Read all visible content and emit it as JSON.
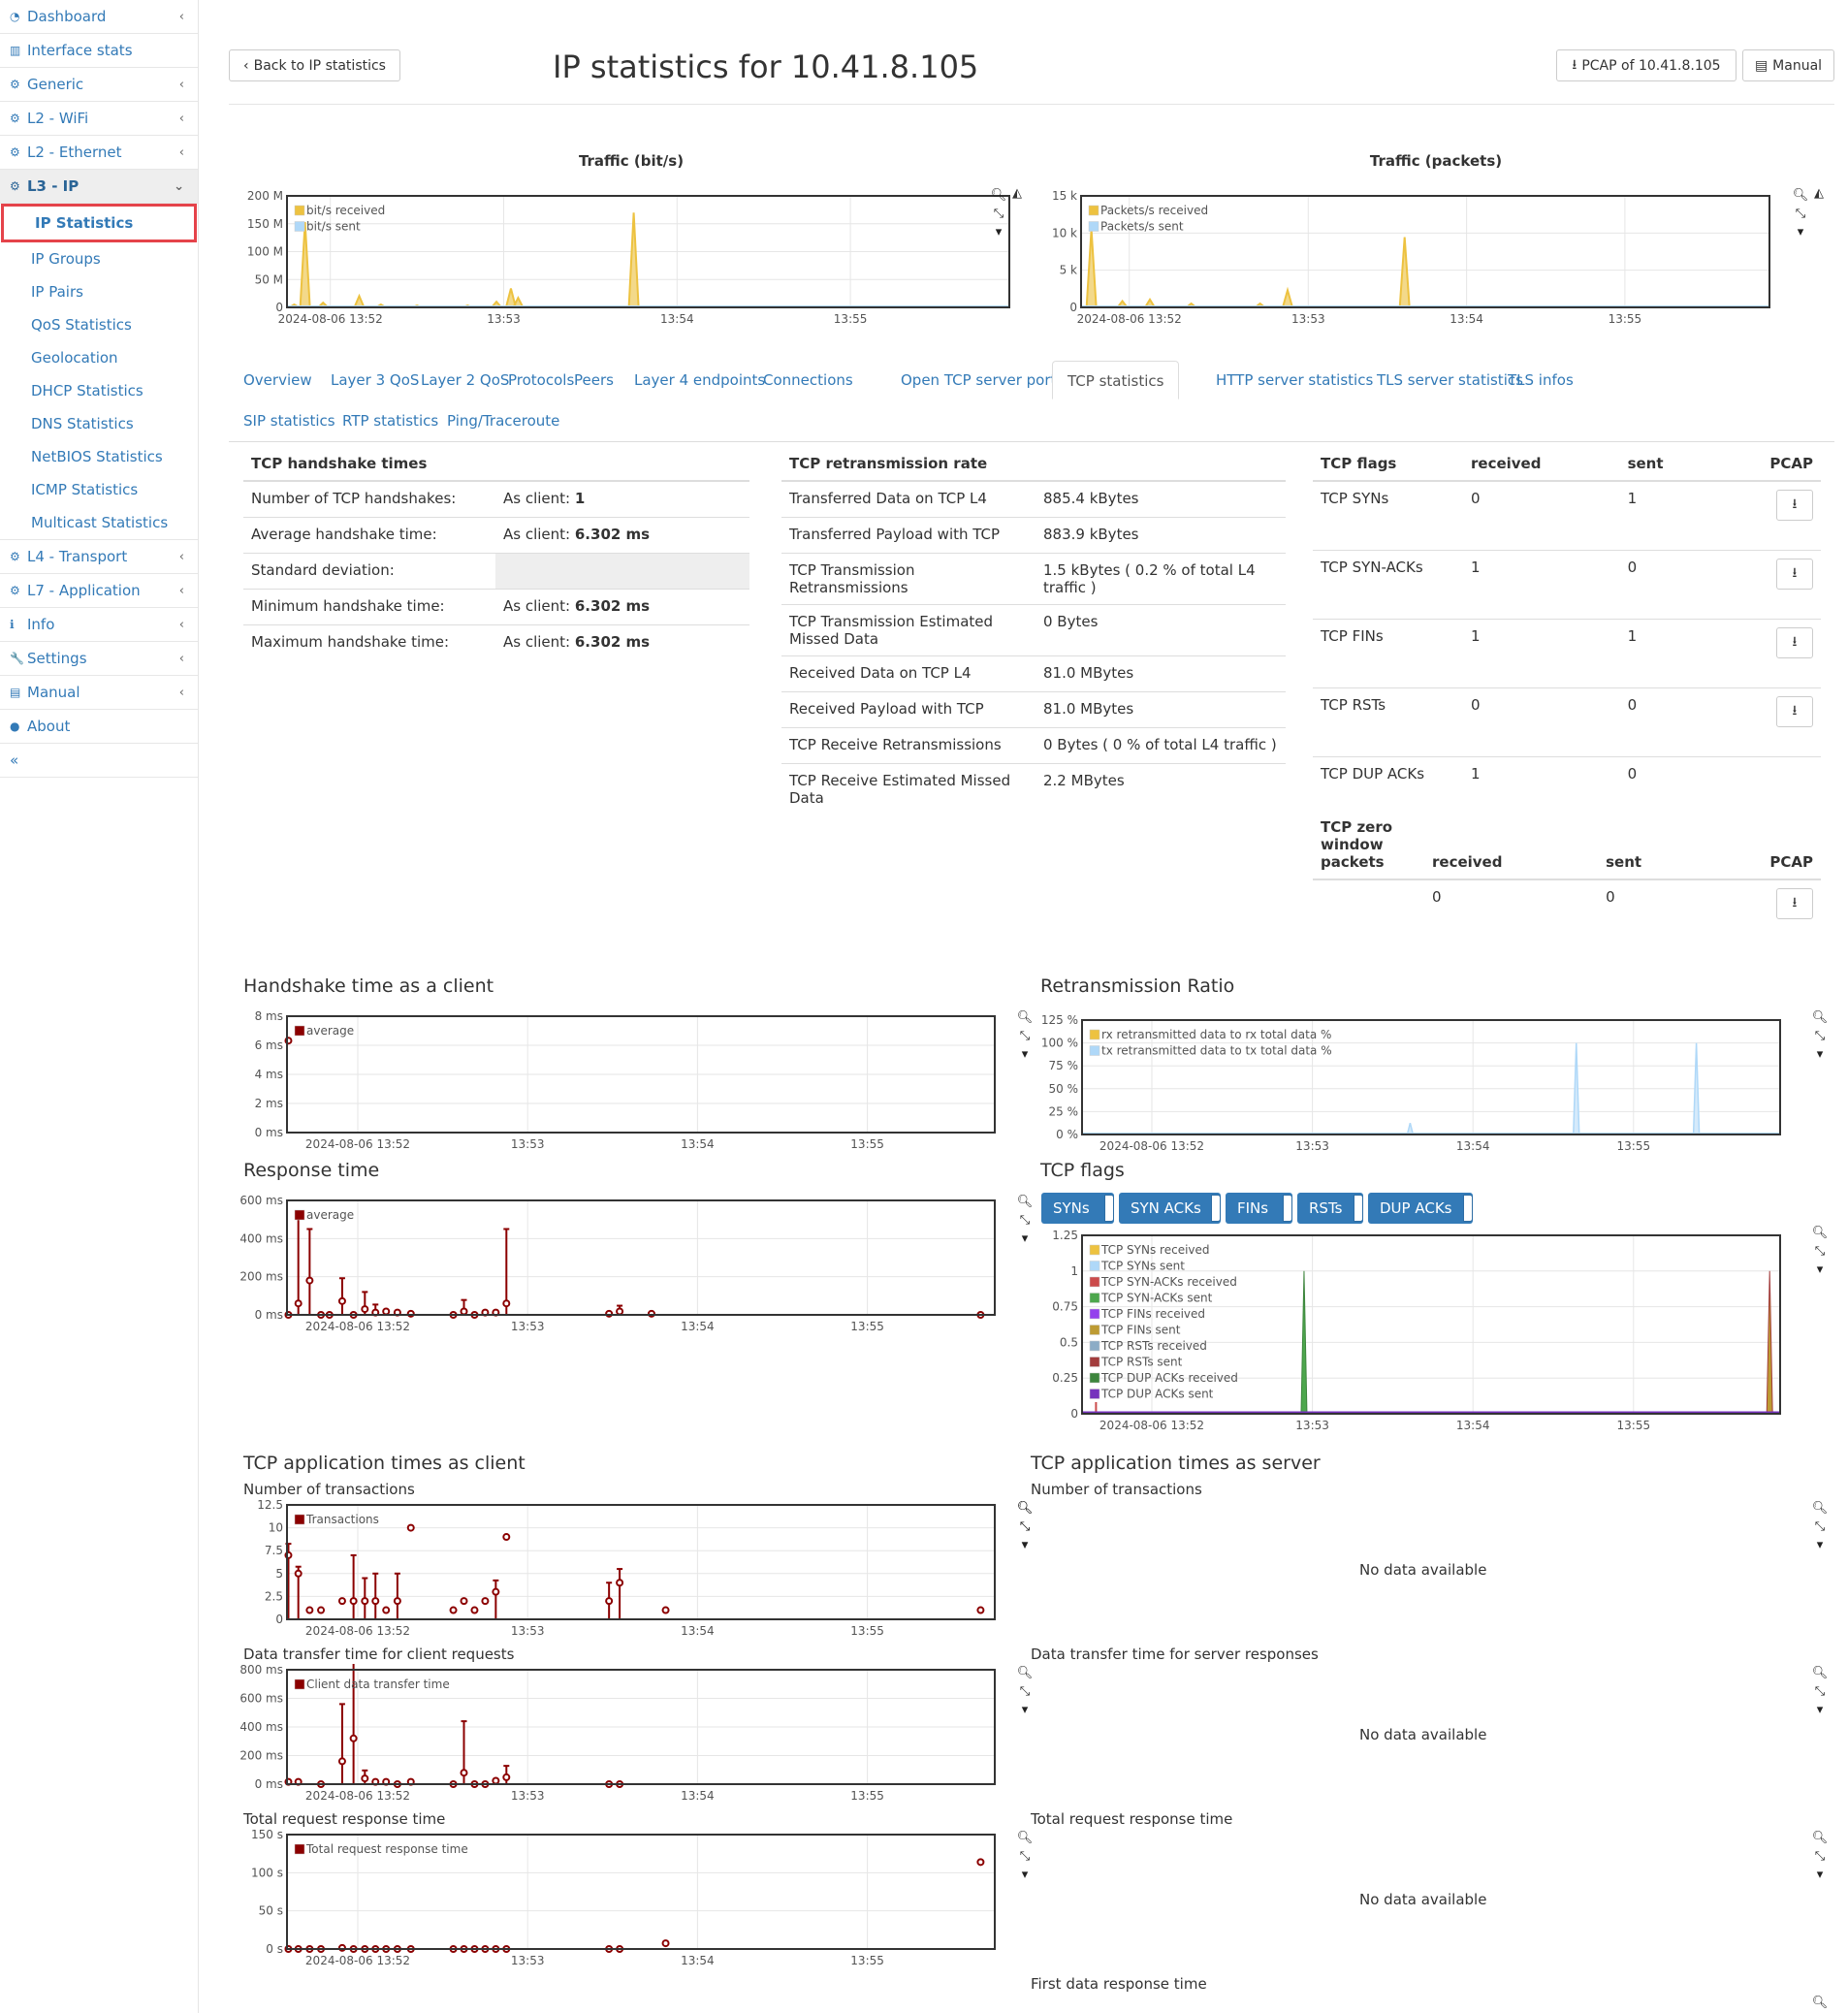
{
  "sidebar": {
    "items": [
      {
        "label": "Dashboard",
        "icon": "dashboard-icon",
        "chev": true
      },
      {
        "label": "Interface stats",
        "icon": "bar-chart-icon",
        "chev": false
      },
      {
        "label": "Generic",
        "icon": "gear-icon",
        "chev": true
      },
      {
        "label": "L2 - WiFi",
        "icon": "gear-icon",
        "chev": true
      },
      {
        "label": "L2 - Ethernet",
        "icon": "gear-icon",
        "chev": true
      },
      {
        "label": "L3 - IP",
        "icon": "gear-icon",
        "chev": true
      }
    ],
    "sub_items": [
      "IP Statistics",
      "IP Groups",
      "IP Pairs",
      "QoS Statistics",
      "Geolocation",
      "DHCP Statistics",
      "DNS Statistics",
      "NetBIOS Statistics",
      "ICMP Statistics",
      "Multicast Statistics"
    ],
    "bottom_items": [
      {
        "label": "L4 - Transport",
        "icon": "gear-icon"
      },
      {
        "label": "L7 - Application",
        "icon": "gear-icon"
      },
      {
        "label": "Info",
        "icon": "info-icon"
      },
      {
        "label": "Settings",
        "icon": "wrench-icon"
      },
      {
        "label": "Manual",
        "icon": "book-icon"
      },
      {
        "label": "About",
        "icon": "info-circle-icon"
      }
    ],
    "collapse": "«"
  },
  "header": {
    "back": "Back to IP statistics",
    "title": "IP statistics for 10.41.8.105",
    "pcap": "PCAP of 10.41.8.105",
    "manual": "Manual"
  },
  "traffic_bits": {
    "title": "Traffic (bit/s)",
    "legend": [
      "bit/s received",
      "bit/s sent"
    ],
    "yticks": [
      "200 M",
      "150 M",
      "100 M",
      "50 M",
      "0"
    ],
    "xticks": [
      "2024-08-06 13:52",
      "13:53",
      "13:54",
      "13:55"
    ]
  },
  "traffic_packets": {
    "title": "Traffic (packets)",
    "legend": [
      "Packets/s received",
      "Packets/s sent"
    ],
    "yticks": [
      "15 k",
      "10 k",
      "5 k",
      "0"
    ],
    "xticks": [
      "2024-08-06 13:52",
      "13:53",
      "13:54",
      "13:55"
    ]
  },
  "tabs": [
    "Overview",
    "Layer 3 QoS",
    "Layer 2 QoS",
    "Protocols",
    "Peers",
    "Layer 4 endpoints",
    "Connections",
    "Open TCP server ports",
    "TCP statistics",
    "HTTP server statistics",
    "TLS server statistics",
    "TLS infos",
    "SIP statistics",
    "RTP statistics",
    "Ping/Traceroute"
  ],
  "handshake": {
    "title": "TCP handshake times",
    "rows": [
      {
        "label": "Number of TCP handshakes:",
        "prefix": "As client: ",
        "value": "1"
      },
      {
        "label": "Average handshake time:",
        "prefix": "As client: ",
        "value": "6.302 ms"
      },
      {
        "label": "Standard deviation:",
        "prefix": "",
        "value": ""
      },
      {
        "label": "Minimum handshake time:",
        "prefix": "As client: ",
        "value": "6.302 ms"
      },
      {
        "label": "Maximum handshake time:",
        "prefix": "As client: ",
        "value": "6.302 ms"
      }
    ]
  },
  "retrans": {
    "title": "TCP retransmission rate",
    "rows": [
      [
        "Transferred Data on TCP L4",
        "885.4 kBytes"
      ],
      [
        "Transferred Payload with TCP",
        "883.9 kBytes"
      ],
      [
        "TCP Transmission Retransmissions",
        "1.5 kBytes ( 0.2 % of total L4 traffic )"
      ],
      [
        "TCP Transmission Estimated Missed Data",
        "0 Bytes"
      ],
      [
        "Received Data on TCP L4",
        "81.0 MBytes"
      ],
      [
        "Received Payload with TCP",
        "81.0 MBytes"
      ],
      [
        "TCP Receive Retransmissions",
        "0 Bytes ( 0 % of total L4 traffic )"
      ],
      [
        "TCP Receive Estimated Missed Data",
        "2.2 MBytes"
      ]
    ]
  },
  "flags": {
    "headers": [
      "TCP flags",
      "received",
      "sent",
      "PCAP"
    ],
    "rows": [
      [
        "TCP SYNs",
        "0",
        "1",
        true
      ],
      [
        "TCP SYN-ACKs",
        "1",
        "0",
        true
      ],
      [
        "TCP FINs",
        "1",
        "1",
        true
      ],
      [
        "TCP RSTs",
        "0",
        "0",
        true
      ],
      [
        "TCP DUP ACKs",
        "1",
        "0",
        false
      ]
    ],
    "zero_headers": [
      "TCP zero window packets",
      "received",
      "sent",
      "PCAP"
    ],
    "zero_row": [
      "",
      "0",
      "0"
    ]
  },
  "charts": {
    "handshake_client": {
      "title": "Handshake time as a client",
      "legend": "average",
      "yticks": [
        "8 ms",
        "6 ms",
        "4 ms",
        "2 ms",
        "0 ms"
      ]
    },
    "retrans_ratio": {
      "title": "Retransmission Ratio",
      "legend": [
        "rx retransmitted data to rx total data %",
        "tx retransmitted data to tx total data %"
      ],
      "yticks": [
        "125 %",
        "100 %",
        "75 %",
        "50 %",
        "25 %",
        "0 %"
      ]
    },
    "response_time": {
      "title": "Response time",
      "legend": "average",
      "yticks": [
        "600 ms",
        "400 ms",
        "200 ms",
        "0 ms"
      ]
    },
    "tcp_flags": {
      "title": "TCP flags",
      "buttons": [
        "SYNs",
        "SYN ACKs",
        "FINs",
        "RSTs",
        "DUP ACKs"
      ],
      "yticks": [
        "1.25",
        "1",
        "0.75",
        "0.5",
        "0.25",
        "0"
      ],
      "legend": [
        "TCP SYNs received",
        "TCP SYNs sent",
        "TCP SYN-ACKs received",
        "TCP SYN-ACKs sent",
        "TCP FINs received",
        "TCP FINs sent",
        "TCP RSTs received",
        "TCP RSTs sent",
        "TCP DUP ACKs received",
        "TCP DUP ACKs sent"
      ],
      "legend_colors": [
        "#edc240",
        "#afd8f8",
        "#cb4b4b",
        "#4da74d",
        "#9440ed",
        "#bd9b33",
        "#8cacc6",
        "#a23c3c",
        "#3d853d",
        "#7633bd"
      ]
    },
    "app_client_title": "TCP application times as client",
    "app_server_title": "TCP application times as server",
    "transactions": {
      "title": "Number of transactions",
      "legend": "Transactions",
      "yticks": [
        "12.5",
        "10",
        "7.5",
        "5",
        "2.5",
        "0"
      ]
    },
    "data_transfer": {
      "title": "Data transfer time for client requests",
      "legend": "Client data transfer time",
      "yticks": [
        "800 ms",
        "600 ms",
        "400 ms",
        "200 ms",
        "0 ms"
      ]
    },
    "total_resp": {
      "title": "Total request response time",
      "legend": "Total request response time",
      "yticks": [
        "150 s",
        "100 s",
        "50 s",
        "0 s"
      ]
    },
    "srv_transactions": "Number of transactions",
    "srv_transfer": "Data transfer time for server responses",
    "srv_total": "Total request response time",
    "srv_first": "First data response time",
    "no_data": "No data available",
    "xticks": [
      "2024-08-06 13:52",
      "13:53",
      "13:54",
      "13:55"
    ]
  }
}
